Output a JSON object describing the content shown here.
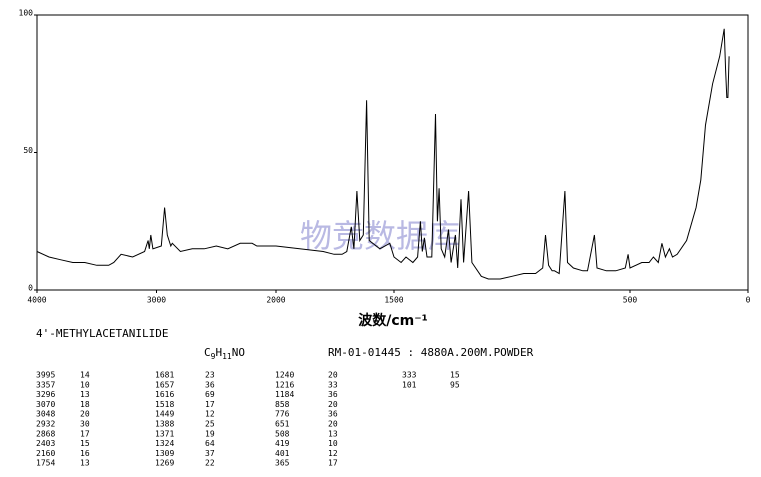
{
  "chart_data": {
    "type": "line",
    "xlabel": "波数/cm⁻¹",
    "watermark": "物竞数据库",
    "xlim": [
      4000,
      0
    ],
    "ylim": [
      0,
      100
    ],
    "xticks": [
      4000,
      3000,
      2000,
      1500,
      500,
      0
    ],
    "yticks": [
      0,
      50,
      100
    ],
    "x": [
      4000,
      3900,
      3800,
      3700,
      3600,
      3500,
      3400,
      3357,
      3296,
      3200,
      3100,
      3070,
      3060,
      3048,
      3030,
      2960,
      2932,
      2910,
      2880,
      2868,
      2800,
      2700,
      2600,
      2500,
      2403,
      2300,
      2200,
      2160,
      2100,
      2000,
      1900,
      1800,
      1754,
      1720,
      1700,
      1681,
      1670,
      1657,
      1645,
      1630,
      1616,
      1605,
      1560,
      1518,
      1500,
      1470,
      1449,
      1420,
      1400,
      1388,
      1380,
      1371,
      1360,
      1340,
      1324,
      1316,
      1309,
      1300,
      1285,
      1269,
      1258,
      1240,
      1230,
      1216,
      1205,
      1184,
      1170,
      1130,
      1100,
      1050,
      1000,
      950,
      900,
      870,
      858,
      845,
      830,
      820,
      800,
      776,
      765,
      740,
      700,
      680,
      651,
      640,
      600,
      560,
      520,
      508,
      500,
      450,
      419,
      401,
      380,
      365,
      350,
      333,
      320,
      300,
      260,
      220,
      200,
      180,
      150,
      120,
      101,
      95,
      90,
      85,
      80
    ],
    "series": [
      {
        "color": "#000000",
        "values": [
          14,
          12,
          11,
          10,
          10,
          9,
          9,
          10,
          13,
          12,
          14,
          18,
          15,
          20,
          15,
          16,
          30,
          20,
          16,
          17,
          14,
          15,
          15,
          16,
          15,
          17,
          17,
          16,
          16,
          16,
          15,
          14,
          13,
          13,
          14,
          23,
          15,
          36,
          18,
          20,
          69,
          18,
          15,
          17,
          12,
          10,
          12,
          10,
          12,
          25,
          14,
          19,
          12,
          12,
          64,
          25,
          37,
          15,
          12,
          22,
          10,
          20,
          8,
          33,
          10,
          36,
          10,
          5,
          4,
          4,
          5,
          6,
          6,
          8,
          20,
          9,
          7,
          7,
          6,
          36,
          10,
          8,
          7,
          7,
          20,
          8,
          7,
          7,
          8,
          13,
          8,
          10,
          10,
          12,
          10,
          17,
          12,
          15,
          12,
          13,
          18,
          30,
          40,
          60,
          75,
          85,
          95,
          80,
          70,
          70,
          85
        ]
      }
    ]
  },
  "compound": "4'-METHYLACETANILIDE",
  "formula": [
    "C",
    "9",
    "H",
    "11",
    "NO"
  ],
  "sample_info": "RM-01-01445 : 4880A.200M.POWDER",
  "peak_table": [
    [
      [
        "3995",
        "14"
      ],
      [
        "3357",
        "10"
      ],
      [
        "3296",
        "13"
      ],
      [
        "3070",
        "18"
      ],
      [
        "3048",
        "20"
      ],
      [
        "2932",
        "30"
      ],
      [
        "2868",
        "17"
      ],
      [
        "2403",
        "15"
      ],
      [
        "2160",
        "16"
      ],
      [
        "1754",
        "13"
      ]
    ],
    [
      [
        "1681",
        "23"
      ],
      [
        "1657",
        "36"
      ],
      [
        "1616",
        "69"
      ],
      [
        "1518",
        "17"
      ],
      [
        "1449",
        "12"
      ],
      [
        "1388",
        "25"
      ],
      [
        "1371",
        "19"
      ],
      [
        "1324",
        "64"
      ],
      [
        "1309",
        "37"
      ],
      [
        "1269",
        "22"
      ]
    ],
    [
      [
        "1240",
        "20"
      ],
      [
        "1216",
        "33"
      ],
      [
        "1184",
        "36"
      ],
      [
        "858",
        "20"
      ],
      [
        "776",
        "36"
      ],
      [
        "651",
        "20"
      ],
      [
        "508",
        "13"
      ],
      [
        "419",
        "10"
      ],
      [
        "401",
        "12"
      ],
      [
        "365",
        "17"
      ]
    ],
    [
      [
        "333",
        "15"
      ],
      [
        "101",
        "95"
      ]
    ]
  ]
}
